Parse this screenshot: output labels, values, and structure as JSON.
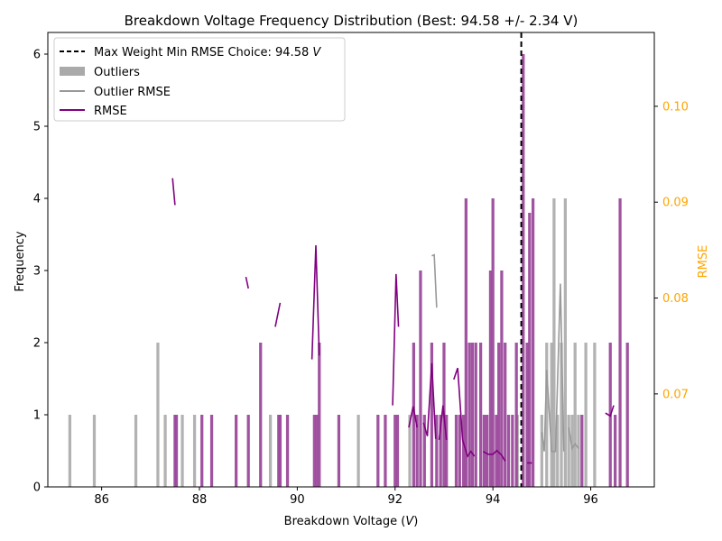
{
  "chart_data": {
    "type": "bar",
    "title": "Breakdown Voltage Frequency Distribution (Best: 94.58 +/- 2.34 V)",
    "xlabel": "Breakdown Voltage (V)",
    "xlabel_prefix": "Breakdown Voltage (",
    "xlabel_unit": "V",
    "xlabel_suffix": ")",
    "ylabel": "Frequency",
    "y2label": "RMSE",
    "xlim": [
      84.9,
      97.3
    ],
    "ylim": [
      0,
      6.3
    ],
    "y2lim": [
      0.0603,
      0.1077
    ],
    "xticks": [
      "86",
      "88",
      "90",
      "92",
      "94",
      "96"
    ],
    "yticks": [
      "0",
      "1",
      "2",
      "3",
      "4",
      "5",
      "6"
    ],
    "y2ticks": [
      "0.07",
      "0.08",
      "0.09",
      "0.10"
    ],
    "grid": false,
    "legend_position": "top-left",
    "legend": [
      {
        "label": "Max Weight Min RMSE Choice: 94.58 V",
        "label_text": "Max Weight Min RMSE Choice: 94.58 ",
        "label_unit": "V",
        "style": "dashed-line",
        "color": "#000000"
      },
      {
        "label": "Outliers",
        "style": "patch",
        "color": "#aaaaaa"
      },
      {
        "label": "Outlier RMSE",
        "style": "line",
        "color": "#999999"
      },
      {
        "label": "RMSE",
        "style": "line",
        "color": "#800080"
      }
    ],
    "colors": {
      "bars": "#9b4a9b",
      "outliers": "#aaaaaa",
      "rmse": "#800080",
      "outlier_rmse": "#999999",
      "vline": "#000000",
      "right_axis": "#ffa500"
    },
    "best_voltage": 94.58,
    "bar_width": 0.06,
    "bars": [
      {
        "x": 87.5,
        "h": 1
      },
      {
        "x": 87.53,
        "h": 1
      },
      {
        "x": 88.05,
        "h": 1
      },
      {
        "x": 88.25,
        "h": 1
      },
      {
        "x": 88.75,
        "h": 1
      },
      {
        "x": 89.0,
        "h": 1
      },
      {
        "x": 89.25,
        "h": 2
      },
      {
        "x": 89.62,
        "h": 1
      },
      {
        "x": 89.65,
        "h": 1
      },
      {
        "x": 89.8,
        "h": 1
      },
      {
        "x": 90.35,
        "h": 1
      },
      {
        "x": 90.4,
        "h": 1
      },
      {
        "x": 90.45,
        "h": 2
      },
      {
        "x": 90.85,
        "h": 1
      },
      {
        "x": 91.65,
        "h": 1
      },
      {
        "x": 91.8,
        "h": 1
      },
      {
        "x": 92.0,
        "h": 1
      },
      {
        "x": 92.05,
        "h": 1
      },
      {
        "x": 92.38,
        "h": 2
      },
      {
        "x": 92.45,
        "h": 1
      },
      {
        "x": 92.52,
        "h": 3
      },
      {
        "x": 92.6,
        "h": 1
      },
      {
        "x": 92.75,
        "h": 2
      },
      {
        "x": 92.85,
        "h": 1
      },
      {
        "x": 92.93,
        "h": 1
      },
      {
        "x": 93.0,
        "h": 2
      },
      {
        "x": 93.05,
        "h": 1
      },
      {
        "x": 93.25,
        "h": 1
      },
      {
        "x": 93.32,
        "h": 1
      },
      {
        "x": 93.4,
        "h": 1
      },
      {
        "x": 93.45,
        "h": 4
      },
      {
        "x": 93.52,
        "h": 2
      },
      {
        "x": 93.58,
        "h": 2
      },
      {
        "x": 93.65,
        "h": 2
      },
      {
        "x": 93.75,
        "h": 2
      },
      {
        "x": 93.82,
        "h": 1
      },
      {
        "x": 93.88,
        "h": 1
      },
      {
        "x": 93.95,
        "h": 3
      },
      {
        "x": 94.0,
        "h": 4
      },
      {
        "x": 94.07,
        "h": 1
      },
      {
        "x": 94.12,
        "h": 2
      },
      {
        "x": 94.18,
        "h": 3
      },
      {
        "x": 94.25,
        "h": 2
      },
      {
        "x": 94.32,
        "h": 1
      },
      {
        "x": 94.4,
        "h": 1
      },
      {
        "x": 94.48,
        "h": 2
      },
      {
        "x": 94.62,
        "h": 6
      },
      {
        "x": 94.7,
        "h": 2
      },
      {
        "x": 94.75,
        "h": 3.8
      },
      {
        "x": 94.82,
        "h": 4
      },
      {
        "x": 95.82,
        "h": 1
      },
      {
        "x": 96.4,
        "h": 2
      },
      {
        "x": 96.5,
        "h": 1
      },
      {
        "x": 96.6,
        "h": 4
      },
      {
        "x": 96.75,
        "h": 2
      }
    ],
    "outlier_bars": [
      {
        "x": 85.35,
        "h": 1
      },
      {
        "x": 85.85,
        "h": 1
      },
      {
        "x": 86.7,
        "h": 1
      },
      {
        "x": 87.15,
        "h": 2
      },
      {
        "x": 87.3,
        "h": 1
      },
      {
        "x": 87.65,
        "h": 1
      },
      {
        "x": 87.9,
        "h": 1
      },
      {
        "x": 89.45,
        "h": 1
      },
      {
        "x": 91.25,
        "h": 1
      },
      {
        "x": 92.3,
        "h": 1
      },
      {
        "x": 94.5,
        "h": 1
      },
      {
        "x": 95.0,
        "h": 1
      },
      {
        "x": 95.1,
        "h": 2
      },
      {
        "x": 95.2,
        "h": 2
      },
      {
        "x": 95.25,
        "h": 4
      },
      {
        "x": 95.32,
        "h": 1
      },
      {
        "x": 95.4,
        "h": 2
      },
      {
        "x": 95.48,
        "h": 4
      },
      {
        "x": 95.55,
        "h": 1
      },
      {
        "x": 95.62,
        "h": 1
      },
      {
        "x": 95.68,
        "h": 2
      },
      {
        "x": 95.75,
        "h": 1
      },
      {
        "x": 95.9,
        "h": 2
      },
      {
        "x": 96.08,
        "h": 2
      }
    ],
    "rmse_segments": [
      [
        [
          87.45,
          0.0925
        ],
        [
          87.5,
          0.0897
        ]
      ],
      [
        [
          88.95,
          0.0822
        ],
        [
          89.0,
          0.081
        ]
      ],
      [
        [
          89.55,
          0.077
        ],
        [
          89.65,
          0.0795
        ]
      ],
      [
        [
          90.3,
          0.0736
        ],
        [
          90.38,
          0.0855
        ],
        [
          90.45,
          0.074
        ]
      ],
      [
        [
          91.95,
          0.0688
        ],
        [
          92.02,
          0.0825
        ],
        [
          92.07,
          0.077
        ]
      ],
      [
        [
          92.28,
          0.0665
        ],
        [
          92.37,
          0.0687
        ],
        [
          92.45,
          0.0665
        ]
      ],
      [
        [
          92.58,
          0.067
        ],
        [
          92.66,
          0.0656
        ],
        [
          92.75,
          0.0732
        ],
        [
          92.83,
          0.0653
        ]
      ],
      [
        [
          92.9,
          0.0652
        ],
        [
          92.98,
          0.0688
        ],
        [
          93.05,
          0.0652
        ]
      ],
      [
        [
          93.2,
          0.0715
        ],
        [
          93.28,
          0.0727
        ],
        [
          93.38,
          0.0652
        ],
        [
          93.48,
          0.0635
        ],
        [
          93.55,
          0.064
        ],
        [
          93.62,
          0.0635
        ]
      ],
      [
        [
          93.8,
          0.064
        ],
        [
          93.9,
          0.0637
        ],
        [
          94.0,
          0.0637
        ],
        [
          94.08,
          0.0641
        ],
        [
          94.18,
          0.0636
        ],
        [
          94.25,
          0.063
        ]
      ],
      [
        [
          94.7,
          0.0628
        ],
        [
          94.8,
          0.0628
        ]
      ],
      [
        [
          96.3,
          0.068
        ],
        [
          96.4,
          0.0677
        ],
        [
          96.47,
          0.0688
        ]
      ]
    ],
    "outlier_rmse_segments": [
      [
        [
          92.75,
          0.0844
        ],
        [
          92.8,
          0.0845
        ],
        [
          92.85,
          0.079
        ]
      ],
      [
        [
          95.0,
          0.066
        ],
        [
          95.05,
          0.064
        ],
        [
          95.1,
          0.0725
        ],
        [
          95.2,
          0.064
        ],
        [
          95.28,
          0.064
        ],
        [
          95.38,
          0.0815
        ],
        [
          95.45,
          0.064
        ]
      ],
      [
        [
          95.55,
          0.0665
        ],
        [
          95.62,
          0.0643
        ],
        [
          95.68,
          0.0648
        ],
        [
          95.75,
          0.0643
        ]
      ]
    ]
  }
}
